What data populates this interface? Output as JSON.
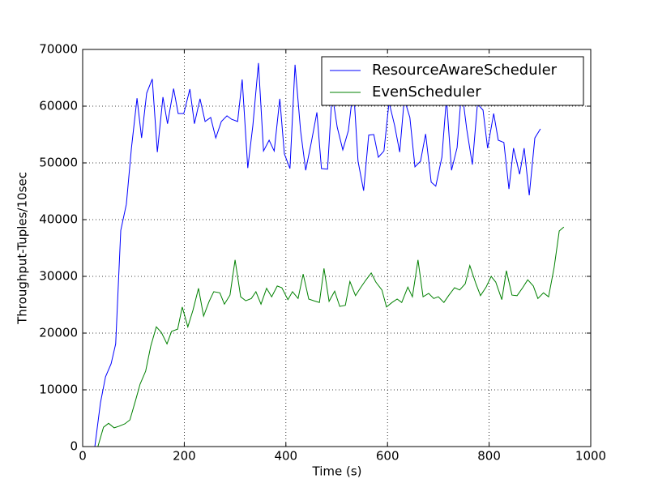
{
  "chart_data": {
    "type": "line",
    "xlabel": "Time (s)",
    "ylabel": "Throughput-Tuples/10sec",
    "xlim": [
      0,
      1000
    ],
    "xticks": [
      0,
      200,
      400,
      600,
      800,
      1000
    ],
    "ylim": [
      0,
      70000
    ],
    "yticks": [
      0,
      10000,
      20000,
      30000,
      40000,
      50000,
      60000,
      70000
    ],
    "grid": true,
    "legend": "upper right",
    "series": [
      {
        "name": "ResourceAwareScheduler",
        "color": "#0000ff",
        "x": [
          24,
          35,
          45,
          56,
          65,
          75,
          86,
          96,
          107,
          116,
          126,
          137,
          147,
          158,
          167,
          179,
          188,
          199,
          211,
          220,
          231,
          241,
          252,
          262,
          273,
          284,
          293,
          305,
          314,
          325,
          335,
          346,
          356,
          367,
          377,
          388,
          397,
          408,
          418,
          429,
          439,
          450,
          461,
          470,
          482,
          491,
          501,
          512,
          523,
          533,
          542,
          553,
          563,
          573,
          582,
          593,
          603,
          614,
          624,
          633,
          644,
          654,
          665,
          675,
          686,
          695,
          707,
          716,
          726,
          737,
          746,
          756,
          767,
          777,
          788,
          797,
          809,
          818,
          829,
          839,
          848,
          860,
          869,
          879,
          890,
          901
        ],
        "values": [
          0,
          7700,
          12300,
          14600,
          18100,
          38100,
          42700,
          52600,
          61400,
          54400,
          62300,
          64800,
          51900,
          61600,
          56900,
          63100,
          58700,
          58700,
          63000,
          56900,
          61300,
          57300,
          58000,
          54400,
          57300,
          58300,
          57700,
          57300,
          64700,
          49100,
          56600,
          67600,
          52100,
          54000,
          52100,
          61300,
          51600,
          49000,
          67300,
          55600,
          48700,
          53600,
          58900,
          49000,
          48900,
          62300,
          56300,
          52300,
          55700,
          63400,
          50300,
          45100,
          54900,
          55000,
          51000,
          52100,
          60700,
          56600,
          51900,
          61300,
          58000,
          49300,
          50300,
          55100,
          46600,
          45900,
          51000,
          61400,
          48700,
          52700,
          63000,
          55900,
          49700,
          60400,
          59300,
          52600,
          58700,
          54000,
          53600,
          45400,
          52600,
          48000,
          52600,
          44300,
          54400,
          56000
        ]
      },
      {
        "name": "EvenScheduler",
        "color": "#008000",
        "x": [
          30,
          41,
          51,
          62,
          72,
          83,
          93,
          104,
          113,
          124,
          134,
          145,
          155,
          166,
          175,
          187,
          196,
          207,
          217,
          228,
          238,
          249,
          258,
          270,
          279,
          290,
          300,
          311,
          321,
          332,
          341,
          351,
          362,
          372,
          383,
          392,
          404,
          413,
          424,
          434,
          445,
          455,
          466,
          475,
          485,
          496,
          506,
          517,
          526,
          537,
          547,
          557,
          568,
          577,
          589,
          598,
          609,
          619,
          628,
          640,
          649,
          660,
          670,
          681,
          691,
          700,
          711,
          721,
          732,
          742,
          753,
          762,
          774,
          783,
          794,
          804,
          813,
          825,
          834,
          845,
          855,
          866,
          876,
          887,
          896,
          907,
          917,
          928,
          938,
          947
        ],
        "values": [
          0,
          3400,
          4100,
          3300,
          3600,
          4000,
          4700,
          8100,
          11000,
          13300,
          17700,
          21100,
          20100,
          18100,
          20300,
          20700,
          24600,
          21100,
          24000,
          27900,
          23000,
          25600,
          27300,
          27100,
          25100,
          26700,
          32900,
          26400,
          25700,
          26100,
          27300,
          25100,
          27900,
          26400,
          28300,
          28000,
          25900,
          27300,
          26100,
          30400,
          26000,
          25700,
          25400,
          31400,
          25600,
          27400,
          24700,
          24900,
          29100,
          26600,
          28000,
          29300,
          30600,
          29000,
          27600,
          24600,
          25400,
          26000,
          25400,
          28100,
          26400,
          32900,
          26400,
          27000,
          26100,
          26400,
          25400,
          26700,
          28000,
          27600,
          28700,
          31900,
          28700,
          26600,
          28100,
          30000,
          29000,
          25900,
          31000,
          26700,
          26600,
          28000,
          29400,
          28300,
          26100,
          27100,
          26400,
          31600,
          38000,
          38700
        ]
      }
    ]
  }
}
